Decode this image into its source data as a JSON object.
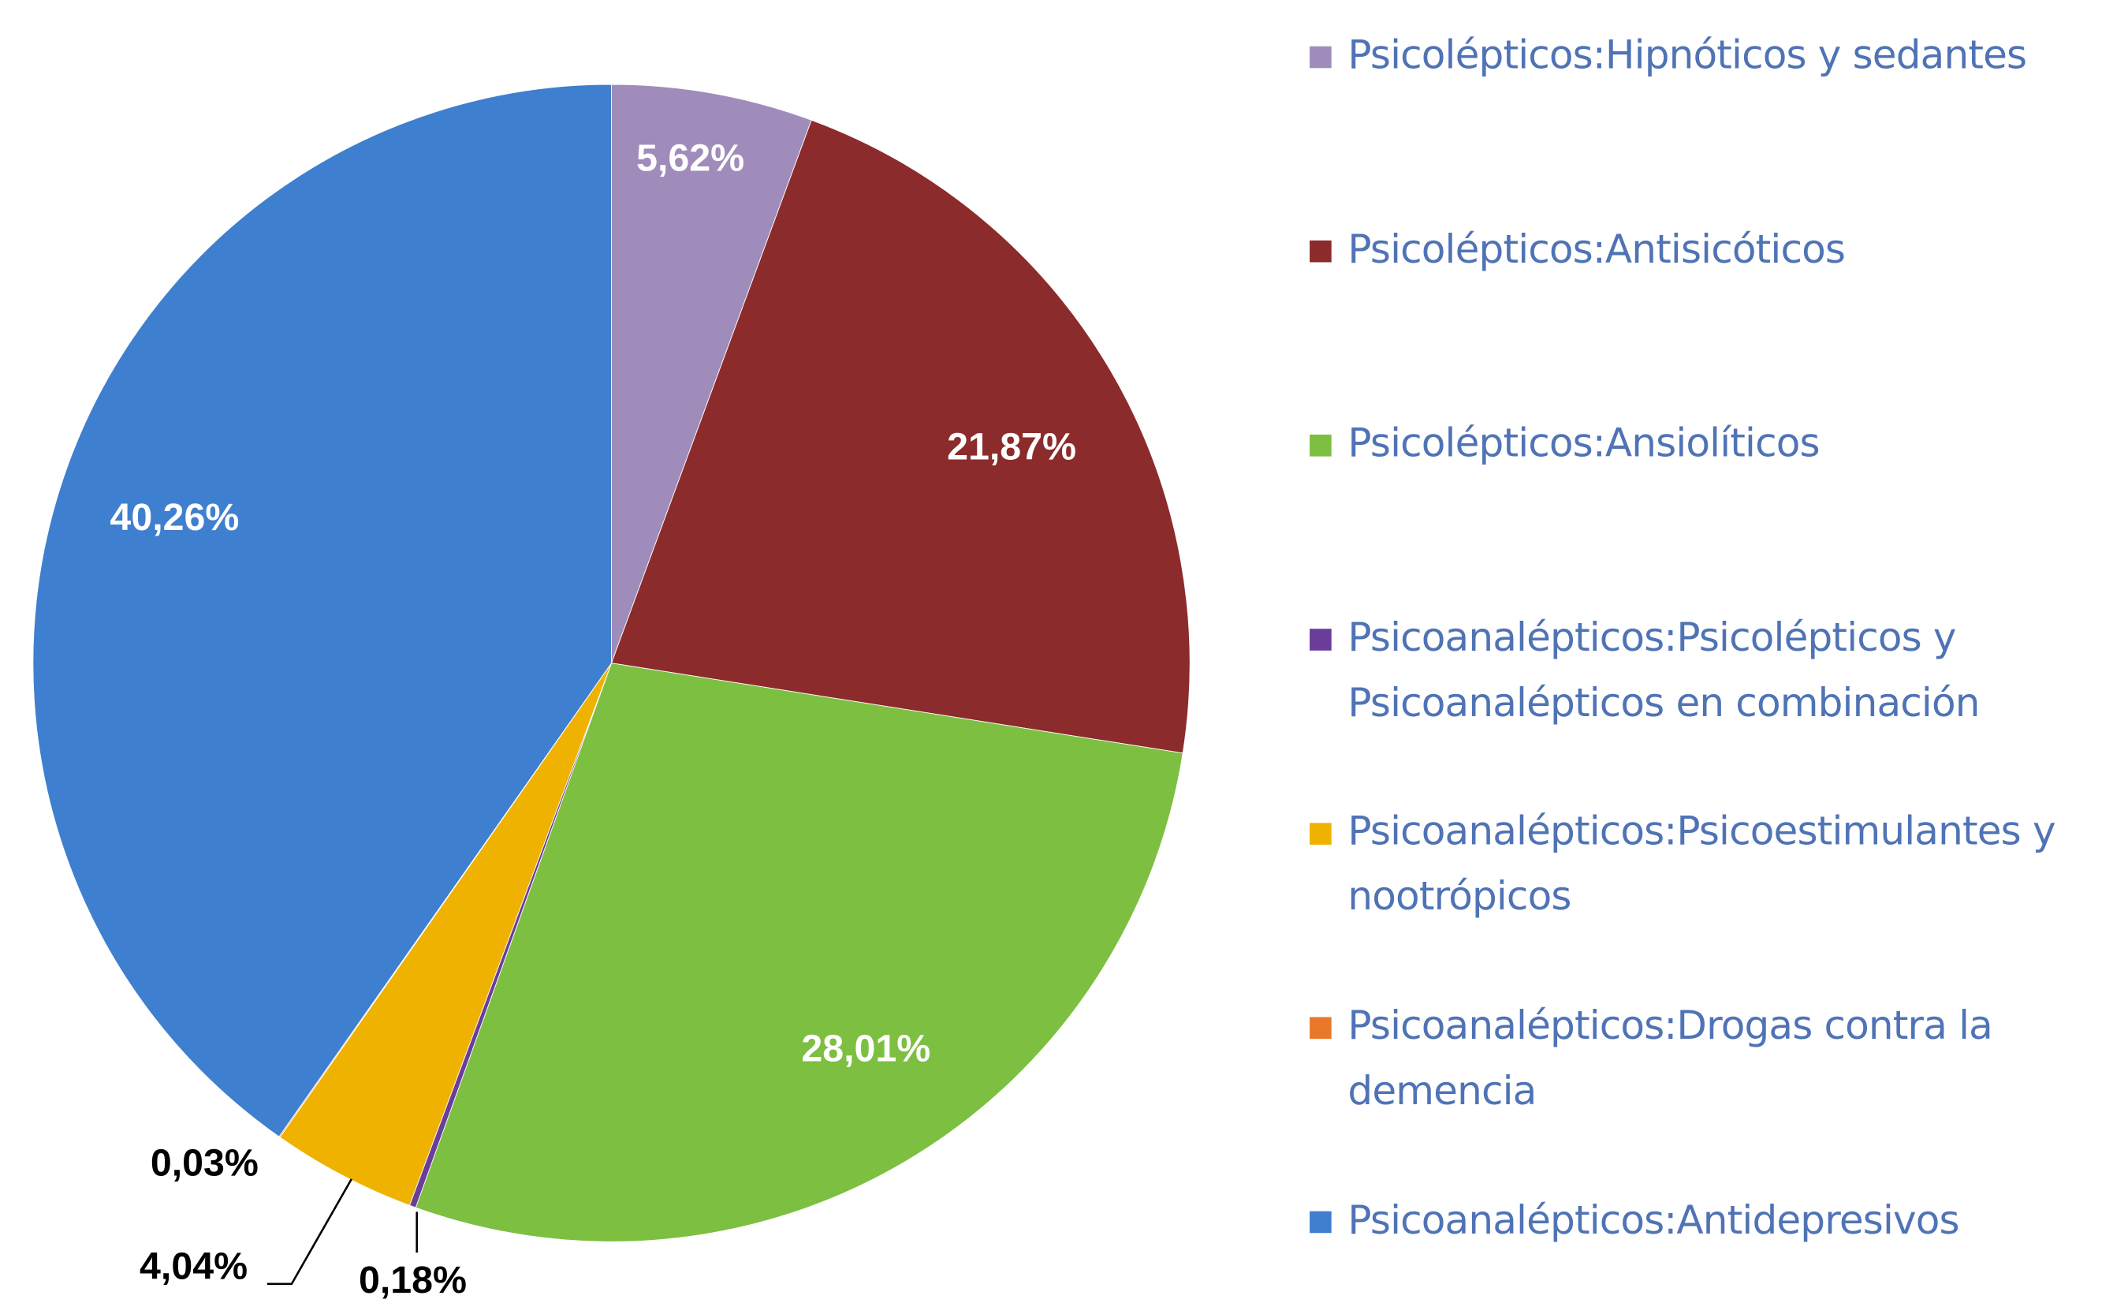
{
  "chart_data": {
    "type": "pie",
    "categories": [
      "Psicolépticos:Hipnóticos y sedantes",
      "Psicolépticos:Antisicóticos",
      "Psicolépticos:Ansiolíticos",
      "Psicoanalépticos:Psicolépticos y Psicoanalépticos en combinación",
      "Psicoanalépticos:Psicoestimulantes y nootrópicos",
      "Psicoanalépticos:Drogas contra la demencia",
      "Psicoanalépticos:Antidepresivos"
    ],
    "values": [
      5.62,
      21.87,
      28.01,
      0.18,
      4.04,
      0.03,
      40.26
    ],
    "value_labels": [
      "5,62%",
      "21,87%",
      "28,01%",
      "0,18%",
      "4,04%",
      "0,03%",
      "40,26%"
    ],
    "colors": [
      "#a08cba",
      "#8c2b2b",
      "#7dbf40",
      "#6a3d9a",
      "#efb200",
      "#e8792a",
      "#3f7fcf"
    ],
    "legend": "right"
  }
}
